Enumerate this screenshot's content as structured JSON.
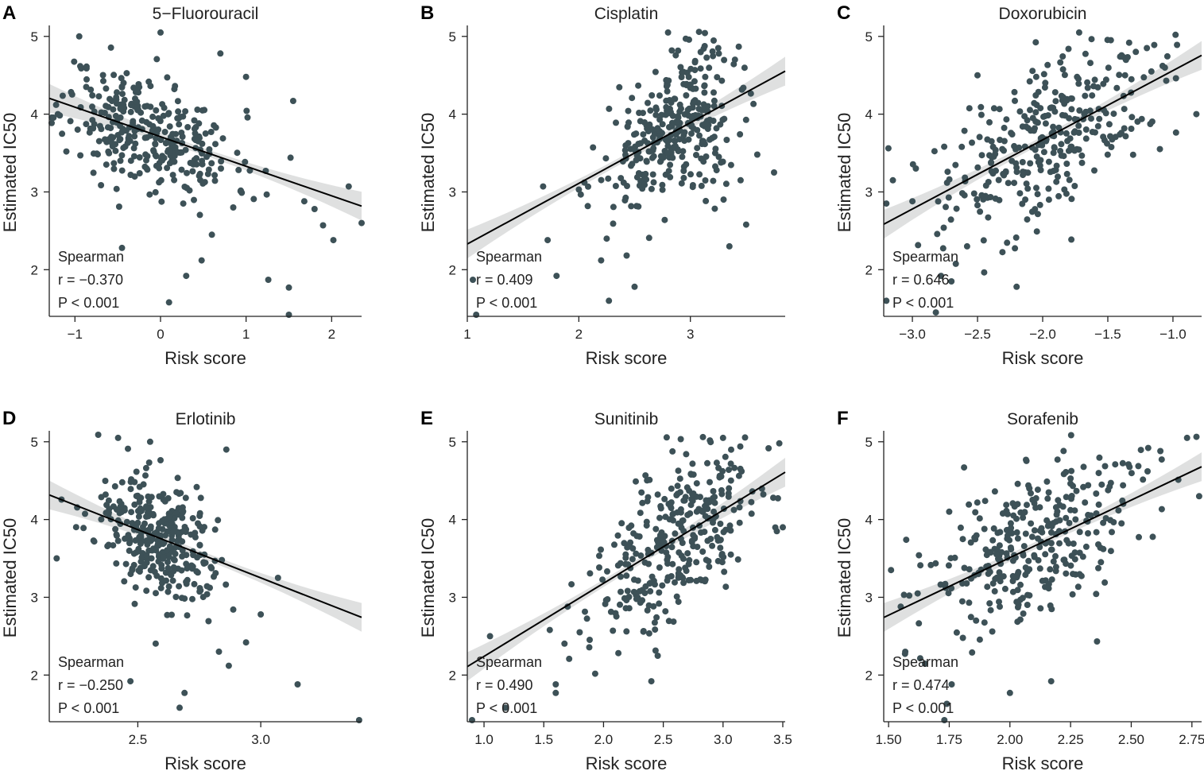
{
  "chart_data": [
    {
      "id": "A",
      "type": "scatter",
      "title": "5−Fluorouracil",
      "xlabel": "Risk score",
      "ylabel": "Estimated IC50",
      "xlim": [
        -1.3,
        2.35
      ],
      "ylim": [
        1.4,
        5.1
      ],
      "xticks": [
        -1,
        0,
        1,
        2
      ],
      "xtick_labels": [
        "−1",
        "0",
        "1",
        "2"
      ],
      "yticks": [
        2,
        3,
        4,
        5
      ],
      "ytick_labels": [
        "2",
        "3",
        "4",
        "5"
      ],
      "stat_method": "Spearman",
      "stat_r": "r = −0.370",
      "stat_p": "P < 0.001",
      "fit": {
        "slope": -0.38,
        "intercept": 3.71
      },
      "cloud": {
        "n": 320,
        "cx": -0.15,
        "sx": 0.5,
        "cy": 3.77,
        "sy": 0.36,
        "seed": 11
      },
      "points": [
        [
          -0.95,
          5.0
        ],
        [
          0.0,
          5.05
        ],
        [
          0.7,
          4.78
        ],
        [
          1.0,
          4.48
        ],
        [
          1.55,
          4.17
        ],
        [
          -1.22,
          4.12
        ],
        [
          -1.2,
          4.0
        ],
        [
          -1.1,
          3.52
        ],
        [
          1.26,
          1.87
        ],
        [
          1.5,
          1.77
        ],
        [
          1.5,
          1.42
        ],
        [
          0.1,
          1.58
        ],
        [
          0.3,
          1.92
        ],
        [
          0.48,
          2.12
        ],
        [
          -0.45,
          2.28
        ],
        [
          1.68,
          2.88
        ],
        [
          1.8,
          2.78
        ],
        [
          2.02,
          2.38
        ],
        [
          2.2,
          3.07
        ],
        [
          2.35,
          2.6
        ],
        [
          1.9,
          2.57
        ],
        [
          1.52,
          3.44
        ],
        [
          1.23,
          3.27
        ],
        [
          0.85,
          2.8
        ],
        [
          0.6,
          2.45
        ]
      ]
    },
    {
      "id": "B",
      "type": "scatter",
      "title": "Cisplatin",
      "xlabel": "Risk score",
      "ylabel": "Estimated IC50",
      "xlim": [
        1.0,
        3.85
      ],
      "ylim": [
        1.4,
        5.1
      ],
      "xticks": [
        1,
        2,
        3
      ],
      "xtick_labels": [
        "1",
        "2",
        "3"
      ],
      "yticks": [
        2,
        3,
        4,
        5
      ],
      "ytick_labels": [
        "2",
        "3",
        "4",
        "5"
      ],
      "stat_method": "Spearman",
      "stat_r": "r = 0.409",
      "stat_p": "P < 0.001",
      "fit": {
        "slope": 0.78,
        "intercept": 1.55
      },
      "cloud": {
        "n": 320,
        "cx": 2.85,
        "sx": 0.28,
        "cy": 3.75,
        "sy": 0.45,
        "seed": 22
      },
      "points": [
        [
          1.08,
          1.42
        ],
        [
          1.05,
          1.87
        ],
        [
          1.68,
          3.07
        ],
        [
          1.72,
          2.38
        ],
        [
          1.8,
          1.92
        ],
        [
          2.0,
          3.03
        ],
        [
          2.05,
          3.12
        ],
        [
          2.27,
          1.6
        ],
        [
          2.5,
          1.78
        ],
        [
          2.2,
          2.12
        ],
        [
          2.25,
          2.4
        ],
        [
          2.8,
          5.05
        ],
        [
          3.75,
          3.25
        ],
        [
          3.6,
          3.48
        ],
        [
          3.5,
          2.58
        ],
        [
          3.35,
          2.3
        ],
        [
          3.25,
          4.85
        ],
        [
          3.4,
          4.7
        ],
        [
          3.45,
          3.15
        ]
      ]
    },
    {
      "id": "C",
      "type": "scatter",
      "title": "Doxorubicin",
      "xlabel": "Risk score",
      "ylabel": "Estimated IC50",
      "xlim": [
        -3.22,
        -0.78
      ],
      "ylim": [
        1.4,
        5.1
      ],
      "xticks": [
        -3.0,
        -2.5,
        -2.0,
        -1.5,
        -1.0
      ],
      "xtick_labels": [
        "−3.0",
        "−2.5",
        "−2.0",
        "−1.5",
        "−1.0"
      ],
      "yticks": [
        2,
        3,
        4,
        5
      ],
      "ytick_labels": [
        "2",
        "3",
        "4",
        "5"
      ],
      "stat_method": "Spearman",
      "stat_r": "r = 0.646",
      "stat_p": "P < 0.001",
      "fit": {
        "slope": 0.89,
        "intercept": 5.45
      },
      "cloud": {
        "n": 320,
        "cx": -1.95,
        "sx": 0.42,
        "cy": 3.75,
        "sy": 0.48,
        "seed": 33
      },
      "points": [
        [
          -3.2,
          2.85
        ],
        [
          -3.15,
          3.15
        ],
        [
          -3.2,
          1.6
        ],
        [
          -2.82,
          1.45
        ],
        [
          -2.78,
          1.92
        ],
        [
          -2.7,
          1.85
        ],
        [
          -2.2,
          1.78
        ],
        [
          -1.72,
          5.05
        ],
        [
          -0.98,
          5.02
        ],
        [
          -0.82,
          4.0
        ],
        [
          -1.1,
          3.55
        ],
        [
          -1.2,
          4.85
        ],
        [
          -2.5,
          4.5
        ],
        [
          -2.58,
          2.3
        ],
        [
          -3.0,
          2.88
        ]
      ]
    },
    {
      "id": "D",
      "type": "scatter",
      "title": "Erlotinib",
      "xlabel": "Risk score",
      "ylabel": "Estimated IC50",
      "xlim": [
        2.14,
        3.41
      ],
      "ylim": [
        1.4,
        5.1
      ],
      "xticks": [
        2.5,
        3.0
      ],
      "xtick_labels": [
        "2.5",
        "3.0"
      ],
      "yticks": [
        2,
        3,
        4,
        5
      ],
      "ytick_labels": [
        "2",
        "3",
        "4",
        "5"
      ],
      "stat_method": "Spearman",
      "stat_r": "r = −0.250",
      "stat_p": "P < 0.001",
      "fit": {
        "slope": -1.24,
        "intercept": 6.97
      },
      "cloud": {
        "n": 320,
        "cx": 2.58,
        "sx": 0.13,
        "cy": 3.77,
        "sy": 0.42,
        "seed": 44
      },
      "points": [
        [
          2.17,
          3.5
        ],
        [
          2.42,
          5.05
        ],
        [
          2.55,
          5.0
        ],
        [
          2.86,
          4.9
        ],
        [
          3.15,
          1.88
        ],
        [
          3.4,
          1.42
        ],
        [
          2.67,
          1.58
        ],
        [
          2.69,
          1.77
        ],
        [
          2.47,
          1.92
        ],
        [
          3.07,
          3.25
        ],
        [
          3.0,
          2.78
        ],
        [
          2.94,
          2.42
        ],
        [
          2.87,
          2.12
        ],
        [
          2.83,
          2.3
        ]
      ]
    },
    {
      "id": "E",
      "type": "scatter",
      "title": "Sunitinib",
      "xlabel": "Risk score",
      "ylabel": "Estimated IC50",
      "xlim": [
        0.86,
        3.52
      ],
      "ylim": [
        1.4,
        5.1
      ],
      "xticks": [
        1.0,
        1.5,
        2.0,
        2.5,
        3.0,
        3.5
      ],
      "xtick_labels": [
        "1.0",
        "1.5",
        "2.0",
        "2.5",
        "3.0",
        "3.5"
      ],
      "yticks": [
        2,
        3,
        4,
        5
      ],
      "ytick_labels": [
        "2",
        "3",
        "4",
        "5"
      ],
      "stat_method": "Spearman",
      "stat_r": "r = 0.490",
      "stat_p": "P < 0.001",
      "fit": {
        "slope": 0.94,
        "intercept": 1.3
      },
      "cloud": {
        "n": 320,
        "cx": 2.6,
        "sx": 0.35,
        "cy": 3.75,
        "sy": 0.48,
        "seed": 55
      },
      "points": [
        [
          0.9,
          1.42
        ],
        [
          1.18,
          1.58
        ],
        [
          1.6,
          1.88
        ],
        [
          1.6,
          1.77
        ],
        [
          1.7,
          2.88
        ],
        [
          1.55,
          2.58
        ],
        [
          2.4,
          1.92
        ],
        [
          3.0,
          5.05
        ],
        [
          3.5,
          3.9
        ],
        [
          3.45,
          3.85
        ],
        [
          3.42,
          4.28
        ],
        [
          1.8,
          2.55
        ],
        [
          1.05,
          2.5
        ]
      ]
    },
    {
      "id": "F",
      "type": "scatter",
      "title": "Sorafenib",
      "xlabel": "Risk score",
      "ylabel": "Estimated IC50",
      "xlim": [
        1.48,
        2.79
      ],
      "ylim": [
        1.4,
        5.1
      ],
      "xticks": [
        1.5,
        1.75,
        2.0,
        2.25,
        2.5,
        2.75
      ],
      "xtick_labels": [
        "1.50",
        "1.75",
        "2.00",
        "2.25",
        "2.50",
        "2.75"
      ],
      "yticks": [
        2,
        3,
        4,
        5
      ],
      "ytick_labels": [
        "2",
        "3",
        "4",
        "5"
      ],
      "stat_method": "Spearman",
      "stat_r": "r = 0.474",
      "stat_p": "P < 0.001",
      "fit": {
        "slope": 1.48,
        "intercept": 0.55
      },
      "cloud": {
        "n": 320,
        "cx": 2.1,
        "sx": 0.22,
        "cy": 3.65,
        "sy": 0.5,
        "seed": 66
      },
      "points": [
        [
          1.51,
          3.35
        ],
        [
          1.55,
          2.88
        ],
        [
          1.73,
          1.42
        ],
        [
          1.74,
          1.63
        ],
        [
          1.76,
          1.88
        ],
        [
          2.0,
          1.77
        ],
        [
          2.17,
          1.92
        ],
        [
          2.73,
          5.05
        ],
        [
          2.78,
          4.3
        ],
        [
          2.62,
          4.88
        ],
        [
          2.57,
          4.92
        ],
        [
          2.46,
          3.95
        ],
        [
          1.62,
          3.05
        ]
      ]
    }
  ]
}
